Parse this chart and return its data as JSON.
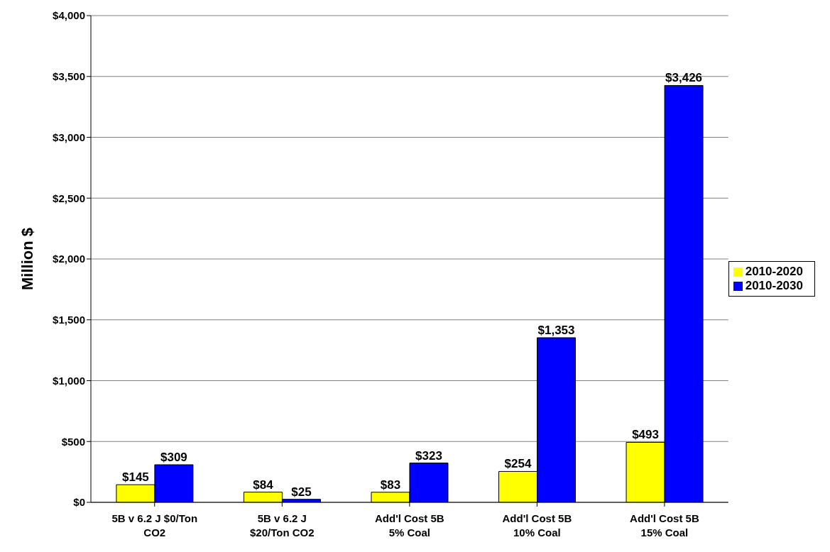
{
  "chart_data": {
    "type": "bar",
    "ylabel": "Million $",
    "categories": [
      "5B v 6.2 J $0/Ton\nCO2",
      "5B v 6.2 J\n$20/Ton CO2",
      "Add'l Cost 5B\n5% Coal",
      "Add'l Cost 5B\n10% Coal",
      "Add'l Cost 5B\n15% Coal"
    ],
    "series": [
      {
        "name": "2010-2020",
        "color": "#ffff00",
        "values": [
          145,
          84,
          83,
          254,
          493
        ],
        "value_labels": [
          "$145",
          "$84",
          "$83",
          "$254",
          "$493"
        ]
      },
      {
        "name": "2010-2030",
        "color": "#0000ff",
        "values": [
          309,
          25,
          323,
          1353,
          3426
        ],
        "value_labels": [
          "$309",
          "$25",
          "$323",
          "$1,353",
          "$3,426"
        ]
      }
    ],
    "ylim": [
      0,
      4000
    ],
    "yticks": [
      {
        "value": 0,
        "label": "$0"
      },
      {
        "value": 500,
        "label": "$500"
      },
      {
        "value": 1000,
        "label": "$1,000"
      },
      {
        "value": 1500,
        "label": "$1,500"
      },
      {
        "value": 2000,
        "label": "$2,000"
      },
      {
        "value": 2500,
        "label": "$2,500"
      },
      {
        "value": 3000,
        "label": "$3,000"
      },
      {
        "value": 3500,
        "label": "$3,500"
      },
      {
        "value": 4000,
        "label": "$4,000"
      }
    ],
    "grid": "y",
    "legend": "right"
  }
}
